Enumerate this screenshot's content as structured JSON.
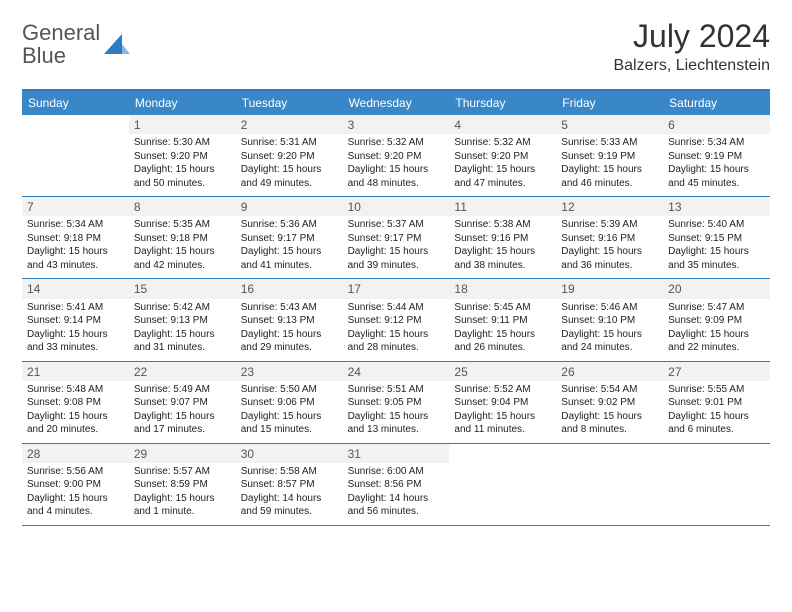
{
  "logo": {
    "text1": "General",
    "text2": "Blue"
  },
  "title": "July 2024",
  "location": "Balzers, Liechtenstein",
  "header_bg": "#3a87c8",
  "border_color": "#2d7dc1",
  "daynum_bg": "#f2f2f2",
  "weekdays": [
    "Sunday",
    "Monday",
    "Tuesday",
    "Wednesday",
    "Thursday",
    "Friday",
    "Saturday"
  ],
  "weeks": [
    [
      null,
      {
        "n": "1",
        "sr": "Sunrise: 5:30 AM",
        "ss": "Sunset: 9:20 PM",
        "d1": "Daylight: 15 hours",
        "d2": "and 50 minutes."
      },
      {
        "n": "2",
        "sr": "Sunrise: 5:31 AM",
        "ss": "Sunset: 9:20 PM",
        "d1": "Daylight: 15 hours",
        "d2": "and 49 minutes."
      },
      {
        "n": "3",
        "sr": "Sunrise: 5:32 AM",
        "ss": "Sunset: 9:20 PM",
        "d1": "Daylight: 15 hours",
        "d2": "and 48 minutes."
      },
      {
        "n": "4",
        "sr": "Sunrise: 5:32 AM",
        "ss": "Sunset: 9:20 PM",
        "d1": "Daylight: 15 hours",
        "d2": "and 47 minutes."
      },
      {
        "n": "5",
        "sr": "Sunrise: 5:33 AM",
        "ss": "Sunset: 9:19 PM",
        "d1": "Daylight: 15 hours",
        "d2": "and 46 minutes."
      },
      {
        "n": "6",
        "sr": "Sunrise: 5:34 AM",
        "ss": "Sunset: 9:19 PM",
        "d1": "Daylight: 15 hours",
        "d2": "and 45 minutes."
      }
    ],
    [
      {
        "n": "7",
        "sr": "Sunrise: 5:34 AM",
        "ss": "Sunset: 9:18 PM",
        "d1": "Daylight: 15 hours",
        "d2": "and 43 minutes."
      },
      {
        "n": "8",
        "sr": "Sunrise: 5:35 AM",
        "ss": "Sunset: 9:18 PM",
        "d1": "Daylight: 15 hours",
        "d2": "and 42 minutes."
      },
      {
        "n": "9",
        "sr": "Sunrise: 5:36 AM",
        "ss": "Sunset: 9:17 PM",
        "d1": "Daylight: 15 hours",
        "d2": "and 41 minutes."
      },
      {
        "n": "10",
        "sr": "Sunrise: 5:37 AM",
        "ss": "Sunset: 9:17 PM",
        "d1": "Daylight: 15 hours",
        "d2": "and 39 minutes."
      },
      {
        "n": "11",
        "sr": "Sunrise: 5:38 AM",
        "ss": "Sunset: 9:16 PM",
        "d1": "Daylight: 15 hours",
        "d2": "and 38 minutes."
      },
      {
        "n": "12",
        "sr": "Sunrise: 5:39 AM",
        "ss": "Sunset: 9:16 PM",
        "d1": "Daylight: 15 hours",
        "d2": "and 36 minutes."
      },
      {
        "n": "13",
        "sr": "Sunrise: 5:40 AM",
        "ss": "Sunset: 9:15 PM",
        "d1": "Daylight: 15 hours",
        "d2": "and 35 minutes."
      }
    ],
    [
      {
        "n": "14",
        "sr": "Sunrise: 5:41 AM",
        "ss": "Sunset: 9:14 PM",
        "d1": "Daylight: 15 hours",
        "d2": "and 33 minutes."
      },
      {
        "n": "15",
        "sr": "Sunrise: 5:42 AM",
        "ss": "Sunset: 9:13 PM",
        "d1": "Daylight: 15 hours",
        "d2": "and 31 minutes."
      },
      {
        "n": "16",
        "sr": "Sunrise: 5:43 AM",
        "ss": "Sunset: 9:13 PM",
        "d1": "Daylight: 15 hours",
        "d2": "and 29 minutes."
      },
      {
        "n": "17",
        "sr": "Sunrise: 5:44 AM",
        "ss": "Sunset: 9:12 PM",
        "d1": "Daylight: 15 hours",
        "d2": "and 28 minutes."
      },
      {
        "n": "18",
        "sr": "Sunrise: 5:45 AM",
        "ss": "Sunset: 9:11 PM",
        "d1": "Daylight: 15 hours",
        "d2": "and 26 minutes."
      },
      {
        "n": "19",
        "sr": "Sunrise: 5:46 AM",
        "ss": "Sunset: 9:10 PM",
        "d1": "Daylight: 15 hours",
        "d2": "and 24 minutes."
      },
      {
        "n": "20",
        "sr": "Sunrise: 5:47 AM",
        "ss": "Sunset: 9:09 PM",
        "d1": "Daylight: 15 hours",
        "d2": "and 22 minutes."
      }
    ],
    [
      {
        "n": "21",
        "sr": "Sunrise: 5:48 AM",
        "ss": "Sunset: 9:08 PM",
        "d1": "Daylight: 15 hours",
        "d2": "and 20 minutes."
      },
      {
        "n": "22",
        "sr": "Sunrise: 5:49 AM",
        "ss": "Sunset: 9:07 PM",
        "d1": "Daylight: 15 hours",
        "d2": "and 17 minutes."
      },
      {
        "n": "23",
        "sr": "Sunrise: 5:50 AM",
        "ss": "Sunset: 9:06 PM",
        "d1": "Daylight: 15 hours",
        "d2": "and 15 minutes."
      },
      {
        "n": "24",
        "sr": "Sunrise: 5:51 AM",
        "ss": "Sunset: 9:05 PM",
        "d1": "Daylight: 15 hours",
        "d2": "and 13 minutes."
      },
      {
        "n": "25",
        "sr": "Sunrise: 5:52 AM",
        "ss": "Sunset: 9:04 PM",
        "d1": "Daylight: 15 hours",
        "d2": "and 11 minutes."
      },
      {
        "n": "26",
        "sr": "Sunrise: 5:54 AM",
        "ss": "Sunset: 9:02 PM",
        "d1": "Daylight: 15 hours",
        "d2": "and 8 minutes."
      },
      {
        "n": "27",
        "sr": "Sunrise: 5:55 AM",
        "ss": "Sunset: 9:01 PM",
        "d1": "Daylight: 15 hours",
        "d2": "and 6 minutes."
      }
    ],
    [
      {
        "n": "28",
        "sr": "Sunrise: 5:56 AM",
        "ss": "Sunset: 9:00 PM",
        "d1": "Daylight: 15 hours",
        "d2": "and 4 minutes."
      },
      {
        "n": "29",
        "sr": "Sunrise: 5:57 AM",
        "ss": "Sunset: 8:59 PM",
        "d1": "Daylight: 15 hours",
        "d2": "and 1 minute."
      },
      {
        "n": "30",
        "sr": "Sunrise: 5:58 AM",
        "ss": "Sunset: 8:57 PM",
        "d1": "Daylight: 14 hours",
        "d2": "and 59 minutes."
      },
      {
        "n": "31",
        "sr": "Sunrise: 6:00 AM",
        "ss": "Sunset: 8:56 PM",
        "d1": "Daylight: 14 hours",
        "d2": "and 56 minutes."
      },
      null,
      null,
      null
    ]
  ]
}
